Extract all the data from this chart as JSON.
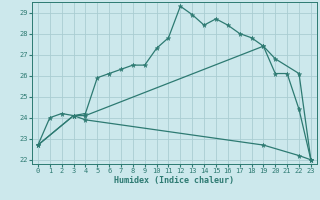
{
  "xlabel": "Humidex (Indice chaleur)",
  "xlim": [
    -0.5,
    23.5
  ],
  "ylim": [
    21.8,
    29.5
  ],
  "xticks": [
    0,
    1,
    2,
    3,
    4,
    5,
    6,
    7,
    8,
    9,
    10,
    11,
    12,
    13,
    14,
    15,
    16,
    17,
    18,
    19,
    20,
    21,
    22,
    23
  ],
  "yticks": [
    22,
    23,
    24,
    25,
    26,
    27,
    28,
    29
  ],
  "bg_color": "#cce8ec",
  "grid_color": "#aacdd2",
  "line_color": "#2d7a72",
  "line1_x": [
    0,
    1,
    2,
    3,
    4,
    5,
    6,
    7,
    8,
    9,
    10,
    11,
    12,
    13,
    14,
    15,
    16,
    17,
    18,
    19,
    20,
    21,
    22,
    23
  ],
  "line1_y": [
    22.7,
    24.0,
    24.2,
    24.1,
    24.2,
    25.9,
    26.1,
    26.3,
    26.5,
    26.5,
    27.3,
    27.8,
    29.3,
    28.9,
    28.4,
    28.7,
    28.4,
    28.0,
    27.8,
    27.4,
    26.1,
    26.1,
    24.4,
    22.0
  ],
  "line2_x": [
    0,
    3,
    4,
    19,
    20,
    22,
    23
  ],
  "line2_y": [
    22.7,
    24.1,
    24.1,
    27.4,
    26.8,
    26.1,
    22.0
  ],
  "line3_x": [
    0,
    3,
    4,
    19,
    22,
    23
  ],
  "line3_y": [
    22.7,
    24.1,
    23.9,
    22.7,
    22.2,
    22.0
  ]
}
